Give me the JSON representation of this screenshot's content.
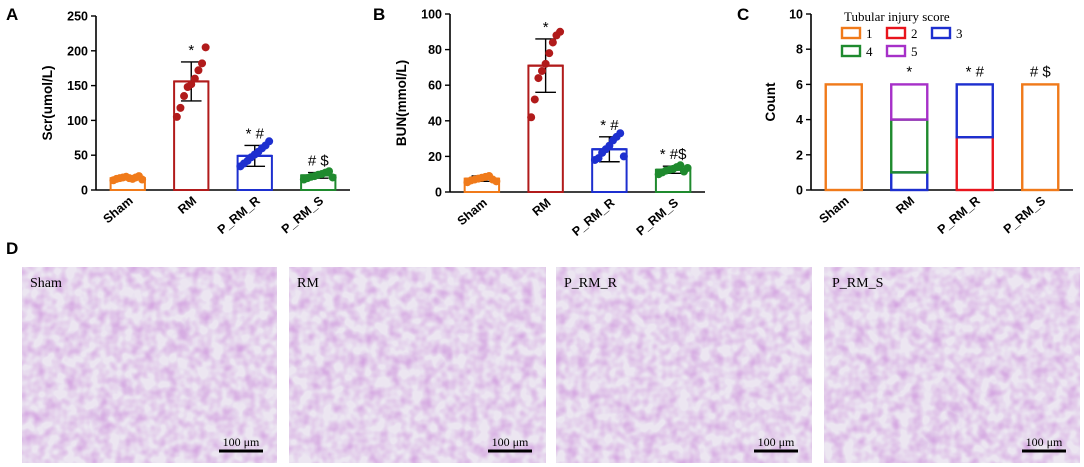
{
  "panels": {
    "a": "A",
    "b": "B",
    "c": "C",
    "d": "D"
  },
  "chart_data": [
    {
      "type": "bar",
      "panel": "A",
      "ylabel": "Scr(umol/L)",
      "ylim": [
        0,
        250
      ],
      "yticks": [
        0,
        50,
        100,
        150,
        200,
        250
      ],
      "categories": [
        "Sham",
        "RM",
        "P_RM_R",
        "P_RM_S"
      ],
      "values": [
        17,
        156,
        49,
        21
      ],
      "errors": [
        2,
        28,
        15,
        4
      ],
      "annotations": [
        "",
        "*",
        "* #",
        "# $"
      ],
      "points": [
        [
          14,
          16,
          17,
          18,
          19,
          17,
          16,
          18,
          20,
          15
        ],
        [
          105,
          118,
          135,
          148,
          152,
          160,
          172,
          182,
          205
        ],
        [
          34,
          38,
          42,
          47,
          51,
          55,
          60,
          64,
          70
        ],
        [
          15,
          17,
          19,
          20,
          22,
          23,
          25,
          27,
          18
        ]
      ],
      "colors": [
        "#f07a1a",
        "#b11b1b",
        "#1d2fcf",
        "#1f8a2e"
      ]
    },
    {
      "type": "bar",
      "panel": "B",
      "ylabel": "BUN(mmol/L)",
      "ylim": [
        0,
        100
      ],
      "yticks": [
        0,
        20,
        40,
        60,
        80,
        100
      ],
      "categories": [
        "Sham",
        "RM",
        "P_RM_R",
        "P_RM_S"
      ],
      "values": [
        7.5,
        71,
        24,
        12.5
      ],
      "errors": [
        1.5,
        15,
        7,
        2
      ],
      "annotations": [
        "",
        "*",
        "* #",
        "* #$"
      ],
      "points": [
        [
          5.5,
          6.5,
          7,
          7.5,
          8,
          8.5,
          9,
          7,
          6
        ],
        [
          42,
          52,
          64,
          68,
          72,
          78,
          84,
          88,
          90
        ],
        [
          18,
          19,
          22,
          24,
          26,
          29,
          31,
          33,
          20
        ],
        [
          10,
          11,
          12,
          12.5,
          13,
          14,
          15,
          11.5,
          13.5
        ]
      ],
      "colors": [
        "#f07a1a",
        "#b11b1b",
        "#1d2fcf",
        "#1f8a2e"
      ]
    },
    {
      "type": "bar",
      "panel": "C",
      "ylabel": "Count",
      "ylim": [
        0,
        10
      ],
      "yticks": [
        0,
        2,
        4,
        6,
        8,
        10
      ],
      "categories": [
        "Sham",
        "RM",
        "P_RM_R",
        "P_RM_S"
      ],
      "legend_title": "Tubular injury score",
      "legend": [
        {
          "label": "1",
          "color": "#f07a1a"
        },
        {
          "label": "2",
          "color": "#e8141c"
        },
        {
          "label": "3",
          "color": "#1d2fcf"
        },
        {
          "label": "4",
          "color": "#1f8a2e"
        },
        {
          "label": "5",
          "color": "#a630c8"
        }
      ],
      "stacks": [
        [
          {
            "score": "1",
            "count": 6
          }
        ],
        [
          {
            "score": "3",
            "count": 1
          },
          {
            "score": "4",
            "count": 3
          },
          {
            "score": "5",
            "count": 2
          }
        ],
        [
          {
            "score": "2",
            "count": 3
          },
          {
            "score": "3",
            "count": 3
          }
        ],
        [
          {
            "score": "1",
            "count": 6
          }
        ]
      ],
      "annotations": [
        "",
        "*",
        "* #",
        "# $"
      ]
    }
  ],
  "micrographs": [
    {
      "title": "Sham",
      "scale_label": "100 μm"
    },
    {
      "title": "RM",
      "scale_label": "100 μm"
    },
    {
      "title": "P_RM_R",
      "scale_label": "100 μm"
    },
    {
      "title": "P_RM_S",
      "scale_label": "100 μm"
    }
  ]
}
